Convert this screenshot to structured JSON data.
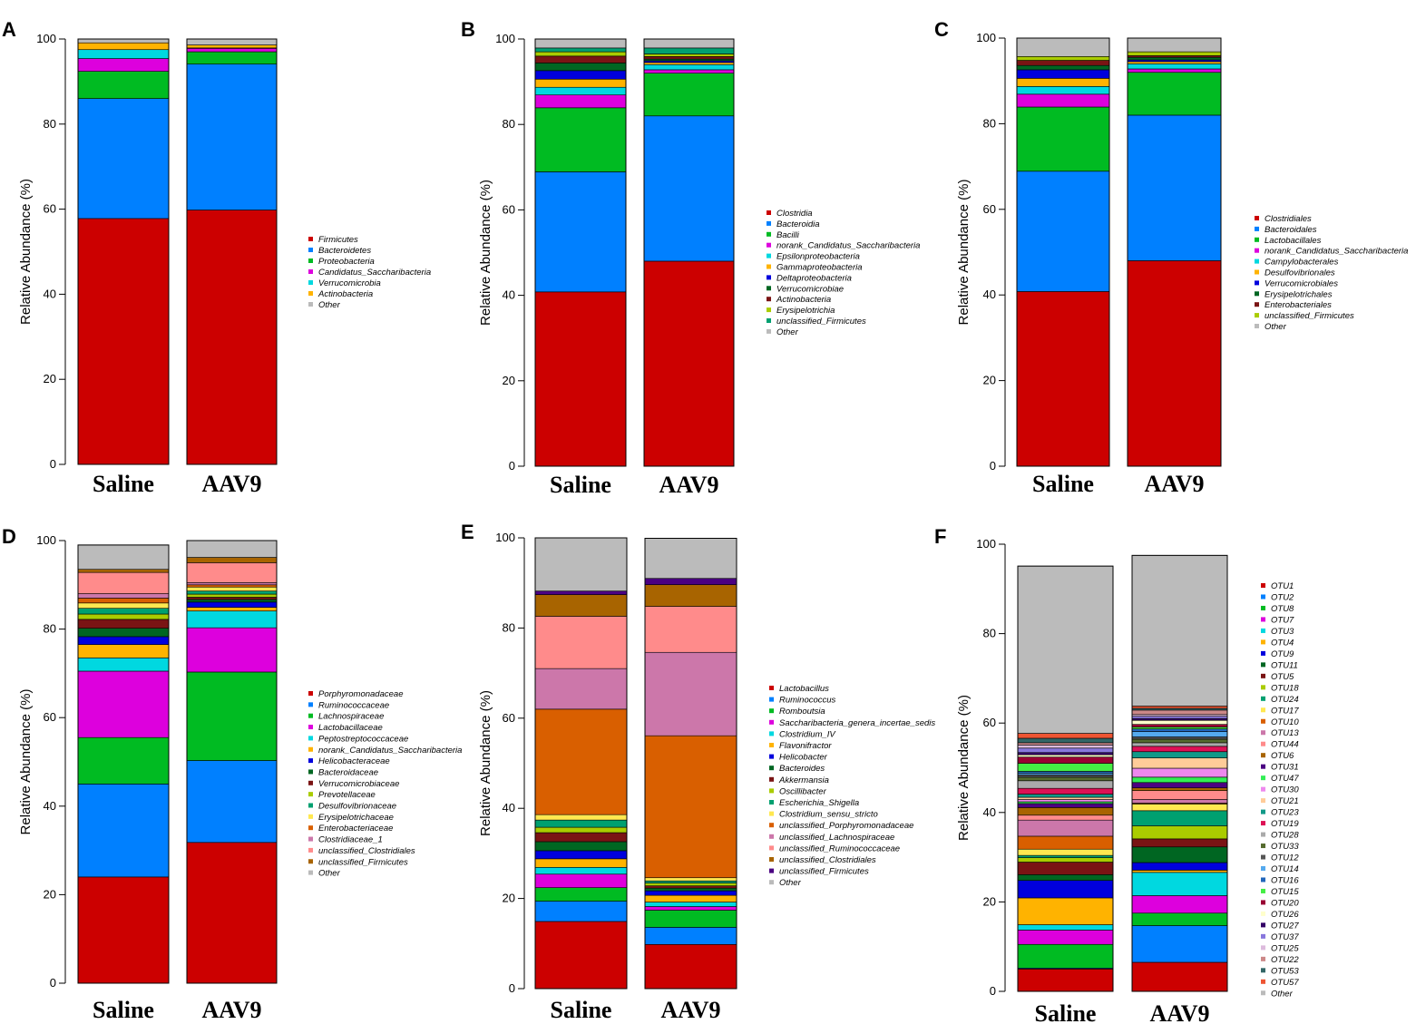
{
  "colors": [
    "#cc0000",
    "#0080ff",
    "#00bb22",
    "#dd00dd",
    "#00d8e0",
    "#ffb300",
    "#0000dd",
    "#006622",
    "#7a1414",
    "#aacc00",
    "#00a070",
    "#ffe850",
    "#d95f00",
    "#cc77aa",
    "#ff8b8b",
    "#a86400",
    "#4b0082",
    "#bbbbbb"
  ],
  "ylabel": "Relative Abundance (%)",
  "chart_data": [
    {
      "panel": "A",
      "type": "bar",
      "stacked": true,
      "categories": [
        "Saline",
        "AAV9"
      ],
      "ylim": [
        0,
        100
      ],
      "yticks": [
        "0",
        "20",
        "40",
        "60",
        "80",
        "100"
      ],
      "ylabel": "Relative Abundance (%)",
      "series": [
        {
          "name": "Firmicutes",
          "color": "#cc0000",
          "values": [
            57.8,
            59.8
          ]
        },
        {
          "name": "Bacteroidetes",
          "color": "#0080ff",
          "values": [
            28.2,
            34.3
          ]
        },
        {
          "name": "Proteobacteria",
          "color": "#00bb22",
          "values": [
            6.4,
            2.9
          ]
        },
        {
          "name": "Candidatus_Saccharibacteria",
          "color": "#dd00dd",
          "values": [
            3.0,
            0.8
          ]
        },
        {
          "name": "Verrucomicrobia",
          "color": "#00d8e0",
          "values": [
            2.1,
            0.1
          ]
        },
        {
          "name": "Actinobacteria",
          "color": "#ffb300",
          "values": [
            1.6,
            0.7
          ]
        },
        {
          "name": "Other",
          "color": "#bbbbbb",
          "values": [
            0.9,
            1.4
          ]
        }
      ]
    },
    {
      "panel": "B",
      "type": "bar",
      "stacked": true,
      "categories": [
        "Saline",
        "AAV9"
      ],
      "ylim": [
        0,
        100
      ],
      "yticks": [
        "0",
        "20",
        "40",
        "60",
        "80",
        "100"
      ],
      "ylabel": "Relative Abundance (%)",
      "series": [
        {
          "name": "Clostridia",
          "color": "#cc0000",
          "values": [
            40.8,
            48.0
          ]
        },
        {
          "name": "Bacteroidia",
          "color": "#0080ff",
          "values": [
            28.1,
            34.0
          ]
        },
        {
          "name": "Bacilli",
          "color": "#00bb22",
          "values": [
            15.0,
            10.0
          ]
        },
        {
          "name": "norank_Candidatus_Saccharibacteria",
          "color": "#dd00dd",
          "values": [
            3.0,
            0.8
          ]
        },
        {
          "name": "Epsilonproteobacteria",
          "color": "#00d8e0",
          "values": [
            1.8,
            1.2
          ]
        },
        {
          "name": "Gammaproteobacteria",
          "color": "#ffb300",
          "values": [
            1.9,
            0.5
          ]
        },
        {
          "name": "Deltaproteobacteria",
          "color": "#0000dd",
          "values": [
            2.0,
            0.4
          ]
        },
        {
          "name": "Verrucomicrobiae",
          "color": "#006622",
          "values": [
            1.8,
            0.4
          ]
        },
        {
          "name": "Actinobacteria",
          "color": "#7a1414",
          "values": [
            1.6,
            0.6
          ]
        },
        {
          "name": "Erysipelotrichia",
          "color": "#aacc00",
          "values": [
            1.0,
            0.6
          ]
        },
        {
          "name": "unclassified_Firmicutes",
          "color": "#00a070",
          "values": [
            0.9,
            1.4
          ]
        },
        {
          "name": "Other",
          "color": "#bbbbbb",
          "values": [
            2.1,
            2.1
          ]
        }
      ]
    },
    {
      "panel": "C",
      "type": "bar",
      "stacked": true,
      "categories": [
        "Saline",
        "AAV9"
      ],
      "ylim": [
        0,
        100
      ],
      "yticks": [
        "0",
        "20",
        "40",
        "60",
        "80",
        "100"
      ],
      "ylabel": "Relative Abundance (%)",
      "series": [
        {
          "name": "Clostridiales",
          "color": "#cc0000",
          "values": [
            40.8,
            48.0
          ]
        },
        {
          "name": "Bacteroidales",
          "color": "#0080ff",
          "values": [
            28.1,
            34.0
          ]
        },
        {
          "name": "Lactobacillales",
          "color": "#00bb22",
          "values": [
            15.0,
            10.0
          ]
        },
        {
          "name": "norank_Candidatus_Saccharibacteria",
          "color": "#dd00dd",
          "values": [
            3.0,
            0.8
          ]
        },
        {
          "name": "Campylobacterales",
          "color": "#00d8e0",
          "values": [
            1.8,
            1.2
          ]
        },
        {
          "name": "Desulfovibrionales",
          "color": "#ffb300",
          "values": [
            1.9,
            0.5
          ]
        },
        {
          "name": "Verrucomicrobiales",
          "color": "#0000dd",
          "values": [
            2.0,
            0.4
          ]
        },
        {
          "name": "Erysipelotrichales",
          "color": "#006622",
          "values": [
            1.0,
            0.6
          ]
        },
        {
          "name": "Enterobacteriales",
          "color": "#7a1414",
          "values": [
            1.2,
            0.4
          ]
        },
        {
          "name": "unclassified_Firmicutes",
          "color": "#aacc00",
          "values": [
            0.9,
            0.9
          ]
        },
        {
          "name": "Other",
          "color": "#bbbbbb",
          "values": [
            4.3,
            3.2
          ]
        }
      ]
    },
    {
      "panel": "D",
      "type": "bar",
      "stacked": true,
      "categories": [
        "Saline",
        "AAV9"
      ],
      "ylim": [
        0,
        100
      ],
      "yticks": [
        "0",
        "20",
        "40",
        "60",
        "80",
        "100"
      ],
      "ylabel": "Relative Abundance (%)",
      "series": [
        {
          "name": "Porphyromonadaceae",
          "color": "#cc0000",
          "values": [
            24.0,
            31.8
          ]
        },
        {
          "name": "Ruminococcaceae",
          "color": "#0080ff",
          "values": [
            21.0,
            18.5
          ]
        },
        {
          "name": "Lachnospiraceae",
          "color": "#00bb22",
          "values": [
            10.5,
            20.0
          ]
        },
        {
          "name": "Lactobacillaceae",
          "color": "#dd00dd",
          "values": [
            15.0,
            10.0
          ]
        },
        {
          "name": "Peptostreptococcaceae",
          "color": "#00d8e0",
          "values": [
            3.0,
            3.8
          ]
        },
        {
          "name": "norank_Candidatus_Saccharibacteria",
          "color": "#ffb300",
          "values": [
            3.0,
            0.8
          ]
        },
        {
          "name": "Helicobacteraceae",
          "color": "#0000dd",
          "values": [
            1.8,
            1.2
          ]
        },
        {
          "name": "Bacteroidaceae",
          "color": "#006622",
          "values": [
            1.9,
            0.6
          ]
        },
        {
          "name": "Verrucomicrobiaceae",
          "color": "#7a1414",
          "values": [
            2.0,
            0.5
          ]
        },
        {
          "name": "Prevotellaceae",
          "color": "#aacc00",
          "values": [
            1.2,
            0.7
          ]
        },
        {
          "name": "Desulfovibrionaceae",
          "color": "#00a070",
          "values": [
            1.3,
            0.7
          ]
        },
        {
          "name": "Erysipelotrichaceae",
          "color": "#ffe850",
          "values": [
            1.2,
            0.9
          ]
        },
        {
          "name": "Enterobacteriaceae",
          "color": "#d95f00",
          "values": [
            1.1,
            0.5
          ]
        },
        {
          "name": "Clostridiaceae_1",
          "color": "#cc77aa",
          "values": [
            1.0,
            0.5
          ]
        },
        {
          "name": "unclassified_Clostridiales",
          "color": "#ff8b8b",
          "values": [
            4.8,
            4.5
          ]
        },
        {
          "name": "unclassified_Firmicutes",
          "color": "#a86400",
          "values": [
            0.7,
            1.2
          ]
        },
        {
          "name": "Other",
          "color": "#bbbbbb",
          "values": [
            5.5,
            3.8
          ]
        }
      ]
    },
    {
      "panel": "E",
      "type": "bar",
      "stacked": true,
      "categories": [
        "Saline",
        "AAV9"
      ],
      "ylim": [
        0,
        100
      ],
      "yticks": [
        "0",
        "20",
        "40",
        "60",
        "80",
        "100"
      ],
      "ylabel": "Relative Abundance (%)",
      "series": [
        {
          "name": "Lactobacillus",
          "color": "#cc0000",
          "values": [
            14.9,
            9.8
          ]
        },
        {
          "name": "Ruminococcus",
          "color": "#0080ff",
          "values": [
            4.5,
            3.8
          ]
        },
        {
          "name": "Romboutsia",
          "color": "#00bb22",
          "values": [
            3.0,
            3.8
          ]
        },
        {
          "name": "Saccharibacteria_genera_incertae_sedis",
          "color": "#dd00dd",
          "values": [
            3.0,
            0.8
          ]
        },
        {
          "name": "Clostridium_IV",
          "color": "#00d8e0",
          "values": [
            1.5,
            1.0
          ]
        },
        {
          "name": "Flavonifractor",
          "color": "#ffb300",
          "values": [
            1.9,
            1.5
          ]
        },
        {
          "name": "Helicobacter",
          "color": "#0000dd",
          "values": [
            1.8,
            1.0
          ]
        },
        {
          "name": "Bacteroides",
          "color": "#006622",
          "values": [
            2.0,
            0.6
          ]
        },
        {
          "name": "Akkermansia",
          "color": "#7a1414",
          "values": [
            2.0,
            0.5
          ]
        },
        {
          "name": "Oscillibacter",
          "color": "#aacc00",
          "values": [
            1.2,
            0.6
          ]
        },
        {
          "name": "Escherichia_Shigella",
          "color": "#00a070",
          "values": [
            1.6,
            0.5
          ]
        },
        {
          "name": "Clostridium_sensu_stricto",
          "color": "#ffe850",
          "values": [
            1.2,
            0.7
          ]
        },
        {
          "name": "unclassified_Porphyromonadaceae",
          "color": "#d95f00",
          "values": [
            23.4,
            31.5
          ]
        },
        {
          "name": "unclassified_Lachnospiraceae",
          "color": "#cc77aa",
          "values": [
            9.0,
            18.5
          ]
        },
        {
          "name": "unclassified_Ruminococcaceae",
          "color": "#ff8b8b",
          "values": [
            11.6,
            10.2
          ]
        },
        {
          "name": "unclassified_Clostridiales",
          "color": "#a86400",
          "values": [
            4.8,
            4.8
          ]
        },
        {
          "name": "unclassified_Firmicutes",
          "color": "#4b0082",
          "values": [
            0.8,
            1.4
          ]
        },
        {
          "name": "Other",
          "color": "#bbbbbb",
          "values": [
            11.8,
            8.9
          ]
        }
      ]
    },
    {
      "panel": "F",
      "type": "bar",
      "stacked": true,
      "categories": [
        "Saline",
        "AAV9"
      ],
      "ylim": [
        0,
        100
      ],
      "yticks": [
        "0",
        "20",
        "40",
        "60",
        "80",
        "100"
      ],
      "ylabel": "Relative Abundance (%)",
      "series": [
        {
          "name": "OTU1",
          "color": "#cc0000",
          "values": [
            5.0,
            6.5
          ]
        },
        {
          "name": "OTU2",
          "color": "#0080ff",
          "values": [
            0.2,
            8.2
          ]
        },
        {
          "name": "OTU8",
          "color": "#00bb22",
          "values": [
            5.3,
            2.8
          ]
        },
        {
          "name": "OTU7",
          "color": "#dd00dd",
          "values": [
            3.2,
            3.9
          ]
        },
        {
          "name": "OTU3",
          "color": "#00d8e0",
          "values": [
            1.2,
            5.2
          ]
        },
        {
          "name": "OTU4",
          "color": "#ffb300",
          "values": [
            6.0,
            0.5
          ]
        },
        {
          "name": "OTU9",
          "color": "#0000dd",
          "values": [
            3.9,
            1.7
          ]
        },
        {
          "name": "OTU11",
          "color": "#006622",
          "values": [
            1.3,
            3.5
          ]
        },
        {
          "name": "OTU5",
          "color": "#7a1414",
          "values": [
            2.8,
            1.8
          ]
        },
        {
          "name": "OTU18",
          "color": "#aacc00",
          "values": [
            1.0,
            2.9
          ]
        },
        {
          "name": "OTU24",
          "color": "#00a070",
          "values": [
            0.5,
            3.4
          ]
        },
        {
          "name": "OTU17",
          "color": "#ffe850",
          "values": [
            1.4,
            1.5
          ]
        },
        {
          "name": "OTU10",
          "color": "#d95f00",
          "values": [
            2.9,
            0.2
          ]
        },
        {
          "name": "OTU13",
          "color": "#cc77aa",
          "values": [
            3.6,
            0.8
          ]
        },
        {
          "name": "OTU44",
          "color": "#ff8b8b",
          "values": [
            1.1,
            2.0
          ]
        },
        {
          "name": "OTU6",
          "color": "#a86400",
          "values": [
            1.7,
            0.6
          ]
        },
        {
          "name": "OTU31",
          "color": "#4b0082",
          "values": [
            0.9,
            1.2
          ]
        },
        {
          "name": "OTU47",
          "color": "#33ee55",
          "values": [
            0.4,
            1.2
          ]
        },
        {
          "name": "OTU30",
          "color": "#ee88ee",
          "values": [
            0.5,
            2.0
          ]
        },
        {
          "name": "OTU21",
          "color": "#ffcc99",
          "values": [
            0.5,
            2.3
          ]
        },
        {
          "name": "OTU23",
          "color": "#119988",
          "values": [
            0.7,
            1.4
          ]
        },
        {
          "name": "OTU19",
          "color": "#dd1155",
          "values": [
            1.3,
            1.2
          ]
        },
        {
          "name": "OTU28",
          "color": "#aaaaaa",
          "values": [
            1.7,
            0.8
          ]
        },
        {
          "name": "OTU33",
          "color": "#556b2f",
          "values": [
            0.8,
            0.8
          ]
        },
        {
          "name": "OTU12",
          "color": "#555555",
          "values": [
            0.5,
            0.5
          ]
        },
        {
          "name": "OTU14",
          "color": "#55aaee",
          "values": [
            0.4,
            1.2
          ]
        },
        {
          "name": "OTU16",
          "color": "#2266bb",
          "values": [
            0.4,
            0.6
          ]
        },
        {
          "name": "OTU15",
          "color": "#44ee44",
          "values": [
            1.8,
            0.4
          ]
        },
        {
          "name": "OTU20",
          "color": "#990033",
          "values": [
            1.4,
            0.6
          ]
        },
        {
          "name": "OTU26",
          "color": "#ffffcc",
          "values": [
            0.5,
            0.9
          ]
        },
        {
          "name": "OTU27",
          "color": "#330066",
          "values": [
            0.5,
            0.4
          ]
        },
        {
          "name": "OTU37",
          "color": "#8877dd",
          "values": [
            1.0,
            0.5
          ]
        },
        {
          "name": "OTU25",
          "color": "#ddbbdd",
          "values": [
            0.7,
            0.4
          ]
        },
        {
          "name": "OTU22",
          "color": "#cc8888",
          "values": [
            0.5,
            1.0
          ]
        },
        {
          "name": "OTU53",
          "color": "#336666",
          "values": [
            1.0,
            0.4
          ]
        },
        {
          "name": "OTU57",
          "color": "#ee5533",
          "values": [
            1.1,
            0.5
          ]
        },
        {
          "name": "Other",
          "color": "#bbbbbb",
          "values": [
            37.4,
            33.7
          ]
        }
      ]
    }
  ]
}
